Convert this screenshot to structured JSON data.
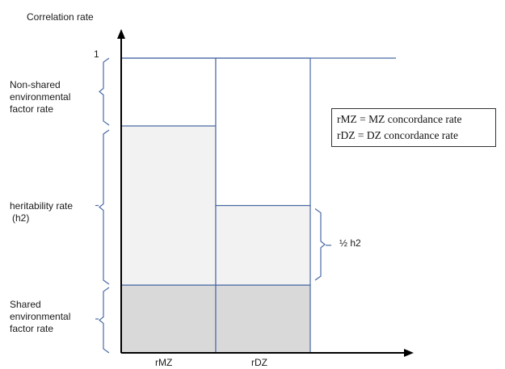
{
  "y_axis": {
    "title": "Correlation rate",
    "max_label": "1"
  },
  "x_axis": {
    "categories": [
      "rMZ",
      "rDZ"
    ]
  },
  "brackets": {
    "non_shared": "Non-shared environmental factor rate",
    "non_shared_lines": [
      "Non-shared",
      "environmental",
      "factor rate"
    ],
    "heritability": "heritability rate (h2)",
    "heritability_lines": [
      "heritability rate",
      "(h2)"
    ],
    "shared": "Shared environmental factor rate",
    "shared_lines": [
      "Shared",
      "environmental",
      "factor rate"
    ],
    "half_h2": "½ h2"
  },
  "legend": {
    "line1": "rMZ = MZ concordance rate",
    "line2": "rDZ = DZ concordance rate"
  },
  "chart_data": {
    "type": "bar",
    "stacked": true,
    "categories": [
      "rMZ",
      "rDZ"
    ],
    "ylabel": "Correlation rate",
    "ylim": [
      0,
      1
    ],
    "series": [
      {
        "component": "shared environment",
        "values": [
          0.23,
          0.23
        ]
      },
      {
        "component": "heritability",
        "values": [
          0.54,
          0.27
        ]
      },
      {
        "component": "non-shared environment",
        "values": [
          0.23,
          0.5
        ]
      }
    ],
    "colors": {
      "shared": "#d9d9d9",
      "heritability": "#f2f2f2",
      "non_shared": "#ffffff",
      "outline": "#4a6aa5",
      "axis": "#000000",
      "bracket": "#4a6aa5"
    },
    "reference_line_value": 1
  }
}
